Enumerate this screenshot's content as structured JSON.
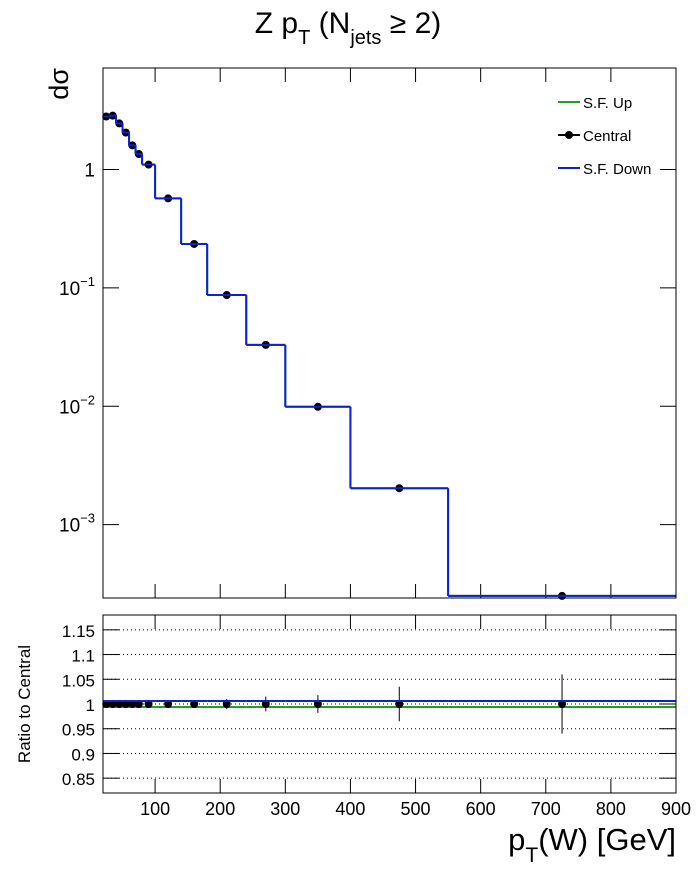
{
  "chart_data": [
    {
      "type": "step",
      "title_parts": [
        "Z p",
        "T",
        " (N",
        "jets",
        " ≥ 2)"
      ],
      "y_label": "dσ",
      "log_y": true,
      "xlim": [
        20,
        900
      ],
      "xticks": [
        100,
        200,
        300,
        400,
        500,
        600,
        700,
        800,
        900
      ],
      "ylim": [
        0.00024,
        7.2
      ],
      "yticks": [
        {
          "value": 0.001,
          "label": "10",
          "exponent": "−3"
        },
        {
          "value": 0.01,
          "label": "10",
          "exponent": "−2"
        },
        {
          "value": 0.1,
          "label": "10",
          "exponent": "−1"
        },
        1
      ],
      "bins": [
        20,
        30,
        40,
        50,
        60,
        70,
        80,
        100,
        140,
        180,
        240,
        300,
        400,
        550,
        900
      ],
      "x": [
        25,
        35,
        45,
        55,
        65,
        75,
        90,
        120,
        160,
        210,
        270,
        350,
        475,
        725
      ],
      "legend": "top-right",
      "series": [
        {
          "name": "S.F. Up",
          "color": "#22a022",
          "style": "step",
          "values": [
            2.8,
            2.85,
            2.45,
            2.05,
            1.6,
            1.35,
            1.1,
            0.57,
            0.235,
            0.087,
            0.033,
            0.0099,
            0.00203,
            0.00025
          ]
        },
        {
          "name": "Central",
          "color": "#000000",
          "style": "points",
          "values": [
            2.8,
            2.85,
            2.45,
            2.05,
            1.6,
            1.35,
            1.1,
            0.57,
            0.235,
            0.087,
            0.033,
            0.0099,
            0.00203,
            0.00025
          ]
        },
        {
          "name": "S.F. Down",
          "color": "#1020d0",
          "style": "step",
          "values": [
            2.8,
            2.85,
            2.45,
            2.05,
            1.6,
            1.35,
            1.1,
            0.57,
            0.235,
            0.087,
            0.033,
            0.0099,
            0.00203,
            0.00025
          ]
        }
      ]
    },
    {
      "type": "ratio",
      "y_label": "Ratio to Central",
      "x_label_parts": [
        "p",
        "T",
        "(W) [GeV]"
      ],
      "xlim": [
        20,
        900
      ],
      "xticks": [
        100,
        200,
        300,
        400,
        500,
        600,
        700,
        800,
        900
      ],
      "ylim": [
        0.82,
        1.18
      ],
      "yticks": [
        0.85,
        0.9,
        0.95,
        1,
        1.05,
        1.1,
        1.15
      ],
      "grid": true,
      "bins": [
        20,
        30,
        40,
        50,
        60,
        70,
        80,
        100,
        140,
        180,
        240,
        300,
        400,
        550,
        900
      ],
      "x": [
        25,
        35,
        45,
        55,
        65,
        75,
        90,
        120,
        160,
        210,
        270,
        350,
        475,
        725
      ],
      "series": [
        {
          "name": "S.F. Up",
          "color": "#22a022",
          "style": "step",
          "values": [
            0.994,
            0.994,
            0.994,
            0.994,
            0.994,
            0.994,
            0.994,
            0.994,
            0.994,
            0.994,
            0.994,
            0.994,
            0.994,
            0.994
          ]
        },
        {
          "name": "Central",
          "color": "#000000",
          "style": "points",
          "values": [
            1,
            1,
            1,
            1,
            1,
            1,
            1,
            1,
            1,
            1,
            1,
            1,
            1,
            1
          ],
          "errors": [
            0.004,
            0.004,
            0.004,
            0.004,
            0.004,
            0.004,
            0.005,
            0.006,
            0.008,
            0.01,
            0.015,
            0.018,
            0.035,
            0.06
          ]
        },
        {
          "name": "S.F. Down",
          "color": "#1020d0",
          "style": "step",
          "values": [
            1.006,
            1.006,
            1.006,
            1.006,
            1.006,
            1.006,
            1.006,
            1.006,
            1.006,
            1.006,
            1.006,
            1.006,
            1.006,
            1.006
          ]
        }
      ]
    }
  ]
}
